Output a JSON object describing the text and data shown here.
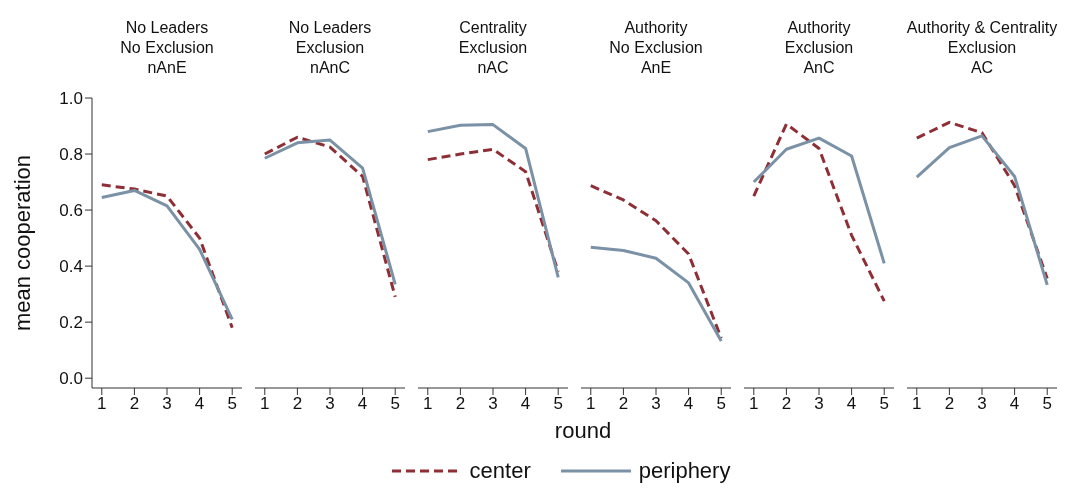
{
  "chart_data": [
    {
      "type": "line",
      "title": "No Leaders\nNo Exclusion\nnAnE",
      "ylabel": "mean cooperation",
      "legend": "bottom",
      "x": [
        1,
        2,
        3,
        4,
        5
      ],
      "xlim": [
        0.7,
        5.3
      ],
      "xticks": [
        1,
        2,
        3,
        4,
        5
      ],
      "ylim": [
        -0.035,
        1
      ],
      "yticks": [
        {
          "value": 0,
          "label": "0.0"
        },
        {
          "value": 0.2,
          "label": "0.2"
        },
        {
          "value": 0.4,
          "label": "0.4"
        },
        {
          "value": 0.6,
          "label": "0.6"
        },
        {
          "value": 0.8,
          "label": "0.8"
        },
        {
          "value": 1,
          "label": "1.0"
        }
      ],
      "series": [
        {
          "name": "center",
          "color": "#8e2f36",
          "line_style": "dashed",
          "values": [
            0.69,
            0.675,
            0.65,
            0.5,
            0.18
          ]
        },
        {
          "name": "periphery",
          "color": "#7a91a6",
          "line_style": "solid",
          "values": [
            0.645,
            0.67,
            0.615,
            0.46,
            0.21
          ]
        }
      ]
    },
    {
      "type": "line",
      "title": "No Leaders\nExclusion\nnAnC",
      "tick_labels": "x",
      "x": [
        1,
        2,
        3,
        4,
        5
      ],
      "xlim": [
        0.7,
        5.3
      ],
      "xticks": [
        1,
        2,
        3,
        4,
        5
      ],
      "ylim": [
        -0.035,
        1
      ],
      "series": [
        {
          "color": "#8e2f36",
          "line_style": "dashed",
          "values": [
            0.8,
            0.86,
            0.825,
            0.72,
            0.29
          ]
        },
        {
          "color": "#7a91a6",
          "line_style": "solid",
          "values": [
            0.785,
            0.84,
            0.85,
            0.75,
            0.335
          ]
        }
      ]
    },
    {
      "type": "line",
      "title": "Centrality\nExclusion\nnAC",
      "xlabel": "round",
      "tick_labels": "x",
      "x": [
        1,
        2,
        3,
        4,
        5
      ],
      "xlim": [
        0.7,
        5.3
      ],
      "xticks": [
        1,
        2,
        3,
        4,
        5
      ],
      "ylim": [
        -0.035,
        1
      ],
      "series": [
        {
          "color": "#8e2f36",
          "line_style": "dashed",
          "values": [
            0.78,
            0.8,
            0.817,
            0.737,
            0.38
          ]
        },
        {
          "color": "#7a91a6",
          "line_style": "solid",
          "values": [
            0.88,
            0.903,
            0.905,
            0.82,
            0.36
          ]
        }
      ]
    },
    {
      "type": "line",
      "title": "Authority\nNo Exclusion\nAnE",
      "tick_labels": "x",
      "x": [
        1,
        2,
        3,
        4,
        5
      ],
      "xlim": [
        0.7,
        5.3
      ],
      "xticks": [
        1,
        2,
        3,
        4,
        5
      ],
      "ylim": [
        -0.035,
        1
      ],
      "series": [
        {
          "color": "#8e2f36",
          "line_style": "dashed",
          "values": [
            0.687,
            0.636,
            0.562,
            0.443,
            0.143
          ]
        },
        {
          "color": "#7a91a6",
          "line_style": "solid",
          "values": [
            0.467,
            0.456,
            0.428,
            0.34,
            0.133
          ]
        }
      ]
    },
    {
      "type": "line",
      "title": "Authority\nExclusion\nAnC",
      "tick_labels": "x",
      "x": [
        1,
        2,
        3,
        4,
        5
      ],
      "xlim": [
        0.7,
        5.3
      ],
      "xticks": [
        1,
        2,
        3,
        4,
        5
      ],
      "ylim": [
        -0.035,
        1
      ],
      "series": [
        {
          "color": "#8e2f36",
          "line_style": "dashed",
          "values": [
            0.65,
            0.907,
            0.82,
            0.51,
            0.275
          ]
        },
        {
          "color": "#7a91a6",
          "line_style": "solid",
          "values": [
            0.7,
            0.817,
            0.857,
            0.793,
            0.41
          ]
        }
      ]
    },
    {
      "type": "line",
      "title": "Authority & Centrality\nExclusion\nAC",
      "tick_labels": "x",
      "x": [
        1,
        2,
        3,
        4,
        5
      ],
      "xlim": [
        0.7,
        5.3
      ],
      "xticks": [
        1,
        2,
        3,
        4,
        5
      ],
      "ylim": [
        -0.035,
        1
      ],
      "series": [
        {
          "color": "#8e2f36",
          "line_style": "dashed",
          "values": [
            0.857,
            0.913,
            0.876,
            0.687,
            0.356
          ]
        },
        {
          "color": "#7a91a6",
          "line_style": "solid",
          "values": [
            0.718,
            0.823,
            0.865,
            0.72,
            0.333
          ]
        }
      ]
    }
  ]
}
